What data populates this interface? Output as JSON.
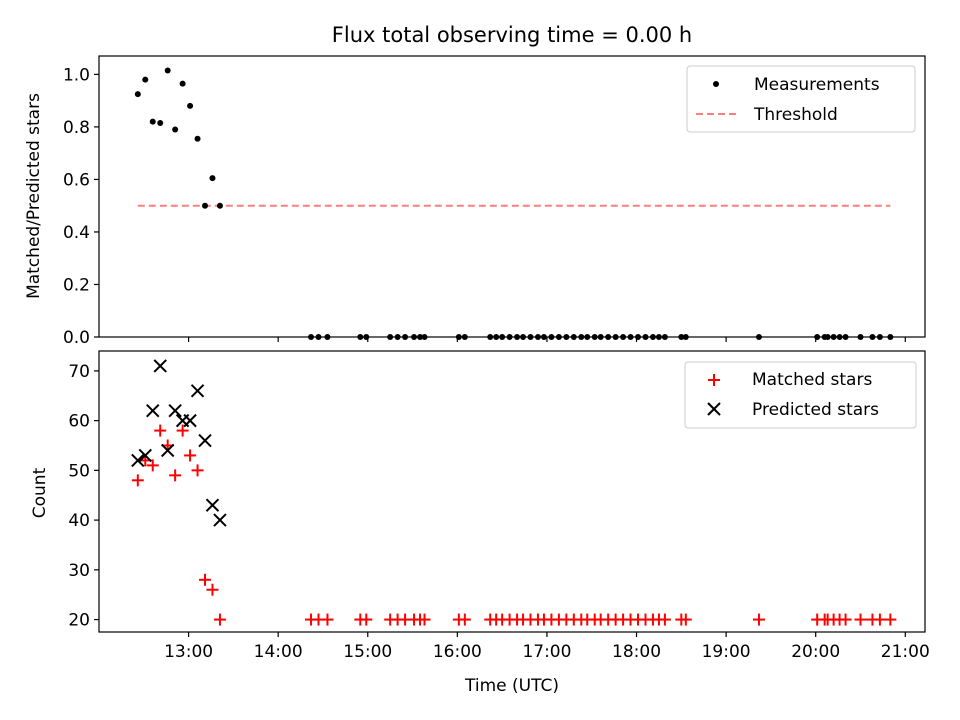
{
  "title": "Flux total observing time = 0.00 h",
  "x_axis": {
    "label": "Time (UTC)",
    "domain_hours": [
      12.0,
      21.22
    ],
    "ticks": [
      {
        "hour": 13,
        "label": "13:00"
      },
      {
        "hour": 14,
        "label": "14:00"
      },
      {
        "hour": 15,
        "label": "15:00"
      },
      {
        "hour": 16,
        "label": "16:00"
      },
      {
        "hour": 17,
        "label": "17:00"
      },
      {
        "hour": 18,
        "label": "18:00"
      },
      {
        "hour": 19,
        "label": "19:00"
      },
      {
        "hour": 20,
        "label": "20:00"
      },
      {
        "hour": 21,
        "label": "21:00"
      }
    ]
  },
  "chart_data": [
    {
      "type": "scatter",
      "panel": "top",
      "ylabel": "Matched/Predicted stars",
      "ylim": [
        0,
        1.07
      ],
      "yticks": [
        "0.0",
        "0.2",
        "0.4",
        "0.6",
        "0.8",
        "1.0"
      ],
      "legend": {
        "placement": "top-right",
        "entries": [
          "Measurements",
          "Threshold"
        ]
      },
      "series": [
        {
          "name": "Measurements",
          "marker": "dot",
          "color": "#000000",
          "x": [
            "12:26",
            "12:31",
            "12:36",
            "12:41",
            "12:46",
            "12:51",
            "12:56",
            "13:01",
            "13:06",
            "13:11",
            "13:16",
            "13:21",
            "14:22",
            "14:27",
            "14:33",
            "14:55",
            "14:59",
            "15:15",
            "15:20",
            "15:25",
            "15:31",
            "15:35",
            "15:38",
            "16:01",
            "16:05",
            "16:22",
            "16:26",
            "16:30",
            "16:35",
            "16:40",
            "16:44",
            "16:49",
            "16:54",
            "16:58",
            "17:03",
            "17:08",
            "17:13",
            "17:18",
            "17:23",
            "17:27",
            "17:32",
            "17:36",
            "17:41",
            "17:46",
            "17:51",
            "17:56",
            "18:01",
            "18:06",
            "18:11",
            "18:15",
            "18:19",
            "18:30",
            "18:33",
            "19:22",
            "20:01",
            "20:06",
            "20:08",
            "20:12",
            "20:16",
            "20:20",
            "20:30",
            "20:38",
            "20:43",
            "20:50"
          ],
          "y": [
            0.925,
            0.98,
            0.82,
            0.815,
            1.015,
            0.79,
            0.965,
            0.88,
            0.755,
            0.5,
            0.605,
            0.5,
            0,
            0,
            0,
            0,
            0,
            0,
            0,
            0,
            0,
            0,
            0,
            0,
            0,
            0,
            0,
            0,
            0,
            0,
            0,
            0,
            0,
            0,
            0,
            0,
            0,
            0,
            0,
            0,
            0,
            0,
            0,
            0,
            0,
            0,
            0,
            0,
            0,
            0,
            0,
            0,
            0,
            0,
            0,
            0,
            0,
            0,
            0,
            0,
            0,
            0,
            0,
            0
          ]
        },
        {
          "name": "Threshold",
          "style": "dashed",
          "color": "#ff7f7f",
          "x": [
            "12:26",
            "20:50"
          ],
          "y": [
            0.5,
            0.5
          ]
        }
      ]
    },
    {
      "type": "scatter",
      "panel": "bottom",
      "xlabel": "Time (UTC)",
      "ylabel": "Count",
      "ylim": [
        17.5,
        74
      ],
      "yticks": [
        "20",
        "30",
        "40",
        "50",
        "60",
        "70"
      ],
      "legend": {
        "placement": "top-right",
        "entries": [
          "Matched stars",
          "Predicted stars"
        ]
      },
      "series": [
        {
          "name": "Matched stars",
          "marker": "plus",
          "color": "#ff0000",
          "x": [
            "12:26",
            "12:31",
            "12:36",
            "12:41",
            "12:46",
            "12:51",
            "12:56",
            "13:01",
            "13:06",
            "13:11",
            "13:16",
            "13:21",
            "14:22",
            "14:27",
            "14:33",
            "14:55",
            "14:59",
            "15:15",
            "15:20",
            "15:25",
            "15:31",
            "15:35",
            "15:38",
            "16:01",
            "16:05",
            "16:22",
            "16:26",
            "16:30",
            "16:35",
            "16:40",
            "16:44",
            "16:49",
            "16:54",
            "16:58",
            "17:03",
            "17:08",
            "17:13",
            "17:18",
            "17:23",
            "17:27",
            "17:32",
            "17:36",
            "17:41",
            "17:46",
            "17:51",
            "17:56",
            "18:01",
            "18:06",
            "18:11",
            "18:15",
            "18:19",
            "18:30",
            "18:33",
            "19:22",
            "20:01",
            "20:06",
            "20:08",
            "20:12",
            "20:16",
            "20:20",
            "20:30",
            "20:38",
            "20:43",
            "20:50"
          ],
          "y": [
            48,
            52,
            51,
            58,
            55,
            49,
            58,
            53,
            50,
            28,
            26,
            20,
            20,
            20,
            20,
            20,
            20,
            20,
            20,
            20,
            20,
            20,
            20,
            20,
            20,
            20,
            20,
            20,
            20,
            20,
            20,
            20,
            20,
            20,
            20,
            20,
            20,
            20,
            20,
            20,
            20,
            20,
            20,
            20,
            20,
            20,
            20,
            20,
            20,
            20,
            20,
            20,
            20,
            20,
            20,
            20,
            20,
            20,
            20,
            20,
            20,
            20,
            20,
            20
          ]
        },
        {
          "name": "Predicted stars",
          "marker": "x",
          "color": "#000000",
          "x": [
            "12:26",
            "12:31",
            "12:36",
            "12:41",
            "12:46",
            "12:51",
            "12:56",
            "13:01",
            "13:06",
            "13:11",
            "13:16",
            "13:21"
          ],
          "y": [
            52,
            53,
            62,
            71,
            54,
            62,
            60,
            60,
            66,
            56,
            43,
            40
          ]
        }
      ]
    }
  ]
}
